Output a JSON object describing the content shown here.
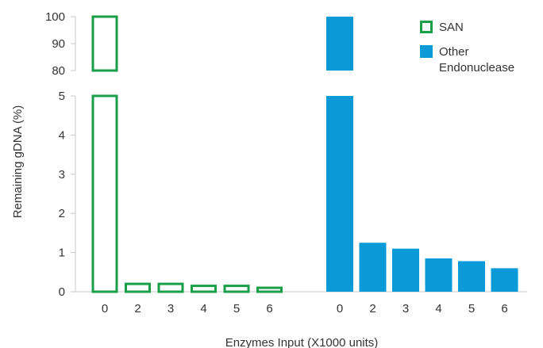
{
  "chart_data": {
    "type": "bar",
    "xlabel": "Enzymes Input (X1000 units)",
    "ylabel": "Remaining gDNA (%)",
    "y_axis": {
      "broken": true,
      "lower_ylim": [
        0,
        5
      ],
      "upper_ylim": [
        80,
        100
      ],
      "lower_ticks": [
        "0",
        "1",
        "2",
        "3",
        "4",
        "5"
      ],
      "upper_ticks": [
        "80",
        "90",
        "100"
      ]
    },
    "grid": false,
    "legend_position": "top-right",
    "groups": [
      {
        "series": "SAN",
        "style": "outline",
        "color": "#1a9e48",
        "categories": [
          "0",
          "2",
          "3",
          "4",
          "5",
          "6"
        ],
        "values": [
          100,
          0.2,
          0.2,
          0.15,
          0.15,
          0.1
        ]
      },
      {
        "series": "Other Endonuclease",
        "style": "filled",
        "color": "#0a9ad8",
        "categories": [
          "0",
          "2",
          "3",
          "4",
          "5",
          "6"
        ],
        "values": [
          100,
          1.25,
          1.1,
          0.85,
          0.78,
          0.6
        ]
      }
    ],
    "legend": [
      {
        "name": "SAN",
        "style": "outline",
        "color": "#1a9e48"
      },
      {
        "name": "Other Endonuclease",
        "style": "filled",
        "color": "#0a9ad8"
      }
    ]
  }
}
